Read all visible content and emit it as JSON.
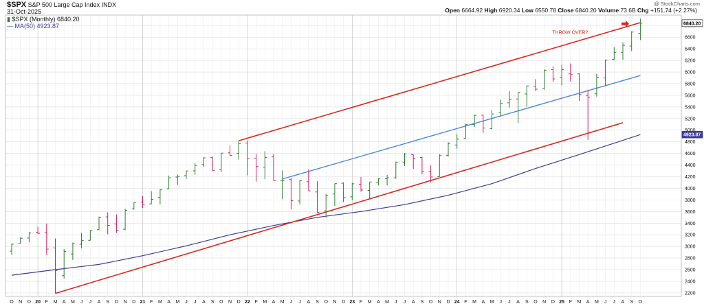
{
  "header": {
    "symbol": "$SPX",
    "name": "S&P 500 Large Cap Index",
    "exchange": "INDX",
    "date": "31-Oct-2025",
    "legend_price": "$SPX (Monthly) 6840.20",
    "legend_ma": "MA(50) 4923.87",
    "watermark": "@ StockCharts.com",
    "ohlc": {
      "open_label": "Open",
      "open": "6664.92",
      "high_label": "High",
      "high": "6920.34",
      "low_label": "Low",
      "low": "6550.78",
      "close_label": "Close",
      "close": "6840.20",
      "volume_label": "Volume",
      "volume": "73.6B",
      "chg_label": "Chg",
      "chg": "+151.74 (+2.27%)"
    }
  },
  "colors": {
    "up": "#2e7d32",
    "down": "#d81b60",
    "channel": "#e0261b",
    "midline": "#4a86e8",
    "ma": "#3b3b9a",
    "grid": "#dddddd"
  },
  "chart_data": {
    "type": "ohlc",
    "title": "$SPX S&P 500 Large Cap Index INDX",
    "timeframe": "Monthly",
    "ylim": [
      2140,
      6980
    ],
    "y_ticks": [
      2200,
      2400,
      2600,
      2800,
      3000,
      3200,
      3400,
      3600,
      3800,
      4000,
      4200,
      4400,
      4600,
      4800,
      5000,
      5200,
      5400,
      5600,
      5800,
      6000,
      6200,
      6400,
      6600,
      6800
    ],
    "x_labels": [
      "O",
      "N",
      "D",
      "20",
      "F",
      "M",
      "A",
      "M",
      "J",
      "J",
      "A",
      "S",
      "O",
      "N",
      "D",
      "21",
      "F",
      "M",
      "A",
      "M",
      "J",
      "J",
      "A",
      "S",
      "O",
      "N",
      "D",
      "22",
      "F",
      "M",
      "A",
      "M",
      "J",
      "J",
      "A",
      "S",
      "O",
      "N",
      "D",
      "23",
      "F",
      "M",
      "A",
      "M",
      "J",
      "J",
      "A",
      "S",
      "O",
      "N",
      "D",
      "24",
      "F",
      "M",
      "A",
      "M",
      "J",
      "J",
      "A",
      "S",
      "O",
      "N",
      "D",
      "25",
      "F",
      "M",
      "A",
      "M",
      "J",
      "J",
      "A",
      "S",
      "O"
    ],
    "year_labels": [
      "20",
      "21",
      "22",
      "23",
      "24",
      "25"
    ],
    "bars": [
      {
        "m": "2019-10",
        "o": 2918,
        "h": 3050,
        "l": 2855,
        "c": 3038
      },
      {
        "m": "2019-11",
        "o": 3050,
        "h": 3155,
        "l": 3050,
        "c": 3141
      },
      {
        "m": "2019-12",
        "o": 3144,
        "h": 3247,
        "l": 3070,
        "c": 3231
      },
      {
        "m": "2020-01",
        "o": 3244,
        "h": 3337,
        "l": 3214,
        "c": 3226
      },
      {
        "m": "2020-02",
        "o": 3236,
        "h": 3394,
        "l": 2855,
        "c": 2954
      },
      {
        "m": "2020-03",
        "o": 2974,
        "h": 3136,
        "l": 2192,
        "c": 2585
      },
      {
        "m": "2020-04",
        "o": 2498,
        "h": 2954,
        "l": 2447,
        "c": 2912
      },
      {
        "m": "2020-05",
        "o": 2869,
        "h": 3068,
        "l": 2767,
        "c": 3044
      },
      {
        "m": "2020-06",
        "o": 3038,
        "h": 3233,
        "l": 2965,
        "c": 3100
      },
      {
        "m": "2020-07",
        "o": 3105,
        "h": 3280,
        "l": 3101,
        "c": 3271
      },
      {
        "m": "2020-08",
        "o": 3288,
        "h": 3514,
        "l": 3284,
        "c": 3500
      },
      {
        "m": "2020-09",
        "o": 3508,
        "h": 3588,
        "l": 3209,
        "c": 3363
      },
      {
        "m": "2020-10",
        "o": 3385,
        "h": 3550,
        "l": 3233,
        "c": 3270
      },
      {
        "m": "2020-11",
        "o": 3296,
        "h": 3646,
        "l": 3279,
        "c": 3622
      },
      {
        "m": "2020-12",
        "o": 3645,
        "h": 3760,
        "l": 3633,
        "c": 3756
      },
      {
        "m": "2021-01",
        "o": 3764,
        "h": 3870,
        "l": 3662,
        "c": 3714
      },
      {
        "m": "2021-02",
        "o": 3731,
        "h": 3950,
        "l": 3725,
        "c": 3811
      },
      {
        "m": "2021-03",
        "o": 3842,
        "h": 3983,
        "l": 3723,
        "c": 3973
      },
      {
        "m": "2021-04",
        "o": 3992,
        "h": 4218,
        "l": 3990,
        "c": 4181
      },
      {
        "m": "2021-05",
        "o": 4193,
        "h": 4238,
        "l": 4056,
        "c": 4204
      },
      {
        "m": "2021-06",
        "o": 4217,
        "h": 4302,
        "l": 4165,
        "c": 4298
      },
      {
        "m": "2021-07",
        "o": 4300,
        "h": 4429,
        "l": 4233,
        "c": 4395
      },
      {
        "m": "2021-08",
        "o": 4407,
        "h": 4537,
        "l": 4368,
        "c": 4523
      },
      {
        "m": "2021-09",
        "o": 4528,
        "h": 4546,
        "l": 4306,
        "c": 4308
      },
      {
        "m": "2021-10",
        "o": 4317,
        "h": 4608,
        "l": 4279,
        "c": 4605
      },
      {
        "m": "2021-11",
        "o": 4610,
        "h": 4743,
        "l": 4560,
        "c": 4567
      },
      {
        "m": "2021-12",
        "o": 4602,
        "h": 4808,
        "l": 4495,
        "c": 4766
      },
      {
        "m": "2022-01",
        "o": 4778,
        "h": 4818,
        "l": 4223,
        "c": 4516
      },
      {
        "m": "2022-02",
        "o": 4519,
        "h": 4595,
        "l": 4115,
        "c": 4374
      },
      {
        "m": "2022-03",
        "o": 4364,
        "h": 4637,
        "l": 4157,
        "c": 4530
      },
      {
        "m": "2022-04",
        "o": 4540,
        "h": 4593,
        "l": 4132,
        "c": 4132
      },
      {
        "m": "2022-05",
        "o": 4131,
        "h": 4307,
        "l": 3811,
        "c": 4132
      },
      {
        "m": "2022-06",
        "o": 4150,
        "h": 4178,
        "l": 3637,
        "c": 3785
      },
      {
        "m": "2022-07",
        "o": 3781,
        "h": 4140,
        "l": 3722,
        "c": 4130
      },
      {
        "m": "2022-08",
        "o": 4113,
        "h": 4325,
        "l": 3955,
        "c": 3955
      },
      {
        "m": "2022-09",
        "o": 3937,
        "h": 4120,
        "l": 3585,
        "c": 3586
      },
      {
        "m": "2022-10",
        "o": 3610,
        "h": 3905,
        "l": 3492,
        "c": 3872
      },
      {
        "m": "2022-11",
        "o": 3902,
        "h": 4080,
        "l": 3698,
        "c": 4080
      },
      {
        "m": "2022-12",
        "o": 4087,
        "h": 4101,
        "l": 3764,
        "c": 3840
      },
      {
        "m": "2023-01",
        "o": 3853,
        "h": 4095,
        "l": 3794,
        "c": 4077
      },
      {
        "m": "2023-02",
        "o": 4070,
        "h": 4195,
        "l": 3943,
        "c": 3970
      },
      {
        "m": "2023-03",
        "o": 3964,
        "h": 4110,
        "l": 3809,
        "c": 4109
      },
      {
        "m": "2023-04",
        "o": 4102,
        "h": 4170,
        "l": 4049,
        "c": 4169
      },
      {
        "m": "2023-05",
        "o": 4166,
        "h": 4231,
        "l": 4048,
        "c": 4180
      },
      {
        "m": "2023-06",
        "o": 4180,
        "h": 4458,
        "l": 4166,
        "c": 4450
      },
      {
        "m": "2023-07",
        "o": 4450,
        "h": 4607,
        "l": 4385,
        "c": 4589
      },
      {
        "m": "2023-08",
        "o": 4578,
        "h": 4584,
        "l": 4336,
        "c": 4508
      },
      {
        "m": "2023-09",
        "o": 4530,
        "h": 4541,
        "l": 4238,
        "c": 4288
      },
      {
        "m": "2023-10",
        "o": 4284,
        "h": 4393,
        "l": 4104,
        "c": 4194
      },
      {
        "m": "2023-11",
        "o": 4201,
        "h": 4587,
        "l": 4197,
        "c": 4568
      },
      {
        "m": "2023-12",
        "o": 4568,
        "h": 4794,
        "l": 4546,
        "c": 4770
      },
      {
        "m": "2024-01",
        "o": 4745,
        "h": 4931,
        "l": 4682,
        "c": 4846
      },
      {
        "m": "2024-02",
        "o": 4861,
        "h": 5111,
        "l": 4854,
        "c": 5096
      },
      {
        "m": "2024-03",
        "o": 5098,
        "h": 5265,
        "l": 5056,
        "c": 5254
      },
      {
        "m": "2024-04",
        "o": 5258,
        "h": 5264,
        "l": 4954,
        "c": 5036
      },
      {
        "m": "2024-05",
        "o": 5029,
        "h": 5342,
        "l": 5011,
        "c": 5278
      },
      {
        "m": "2024-06",
        "o": 5298,
        "h": 5524,
        "l": 5234,
        "c": 5460
      },
      {
        "m": "2024-07",
        "o": 5471,
        "h": 5669,
        "l": 5390,
        "c": 5522
      },
      {
        "m": "2024-08",
        "o": 5537,
        "h": 5651,
        "l": 5119,
        "c": 5648
      },
      {
        "m": "2024-09",
        "o": 5623,
        "h": 5767,
        "l": 5402,
        "c": 5762
      },
      {
        "m": "2024-10",
        "o": 5757,
        "h": 5878,
        "l": 5674,
        "c": 5705
      },
      {
        "m": "2024-11",
        "o": 5723,
        "h": 6044,
        "l": 5696,
        "c": 6032
      },
      {
        "m": "2024-12",
        "o": 6040,
        "h": 6100,
        "l": 5832,
        "c": 5882
      },
      {
        "m": "2025-01",
        "o": 5903,
        "h": 6128,
        "l": 5773,
        "c": 6040
      },
      {
        "m": "2025-02",
        "o": 5969,
        "h": 6147,
        "l": 5837,
        "c": 5955
      },
      {
        "m": "2025-03",
        "o": 5968,
        "h": 5987,
        "l": 5505,
        "c": 5612
      },
      {
        "m": "2025-04",
        "o": 5597,
        "h": 5696,
        "l": 4835,
        "c": 5569
      },
      {
        "m": "2025-05",
        "o": 5625,
        "h": 5968,
        "l": 5578,
        "c": 5912
      },
      {
        "m": "2025-06",
        "o": 5897,
        "h": 6215,
        "l": 5768,
        "c": 6205
      },
      {
        "m": "2025-07",
        "o": 6218,
        "h": 6427,
        "l": 6202,
        "c": 6339
      },
      {
        "m": "2025-08",
        "o": 6340,
        "h": 6508,
        "l": 6212,
        "c": 6460
      },
      {
        "m": "2025-09",
        "o": 6448,
        "h": 6700,
        "l": 6360,
        "c": 6688
      },
      {
        "m": "2025-10",
        "o": 6665,
        "h": 6920,
        "l": 6551,
        "c": 6840
      }
    ],
    "ma50": {
      "name": "MA(50)",
      "points": [
        {
          "m": "2019-10",
          "v": 2505
        },
        {
          "m": "2020-03",
          "v": 2600
        },
        {
          "m": "2020-08",
          "v": 2690
        },
        {
          "m": "2021-01",
          "v": 2840
        },
        {
          "m": "2021-06",
          "v": 3010
        },
        {
          "m": "2021-11",
          "v": 3200
        },
        {
          "m": "2022-04",
          "v": 3360
        },
        {
          "m": "2022-09",
          "v": 3500
        },
        {
          "m": "2023-02",
          "v": 3600
        },
        {
          "m": "2023-07",
          "v": 3720
        },
        {
          "m": "2023-12",
          "v": 3880
        },
        {
          "m": "2024-05",
          "v": 4080
        },
        {
          "m": "2024-10",
          "v": 4340
        },
        {
          "m": "2025-03",
          "v": 4580
        },
        {
          "m": "2025-10",
          "v": 4924
        }
      ]
    },
    "trendlines": [
      {
        "name": "upper-channel",
        "color": "channel",
        "from": {
          "m": "2021-12",
          "v": 4818
        },
        "to": {
          "m": "2025-10",
          "v": 6850
        }
      },
      {
        "name": "lower-channel",
        "color": "channel",
        "from": {
          "m": "2020-03",
          "v": 2192
        },
        "to": {
          "m": "2025-08",
          "v": 5128
        }
      },
      {
        "name": "midline",
        "color": "midline",
        "from": {
          "m": "2022-05",
          "v": 4160
        },
        "to": {
          "m": "2025-10",
          "v": 5940
        }
      }
    ],
    "annotation": {
      "text": "THROW OVER?",
      "m": "2025-04",
      "v": 6690
    },
    "last_price_tag": "6840.20",
    "ma_tag": "4923.87"
  }
}
